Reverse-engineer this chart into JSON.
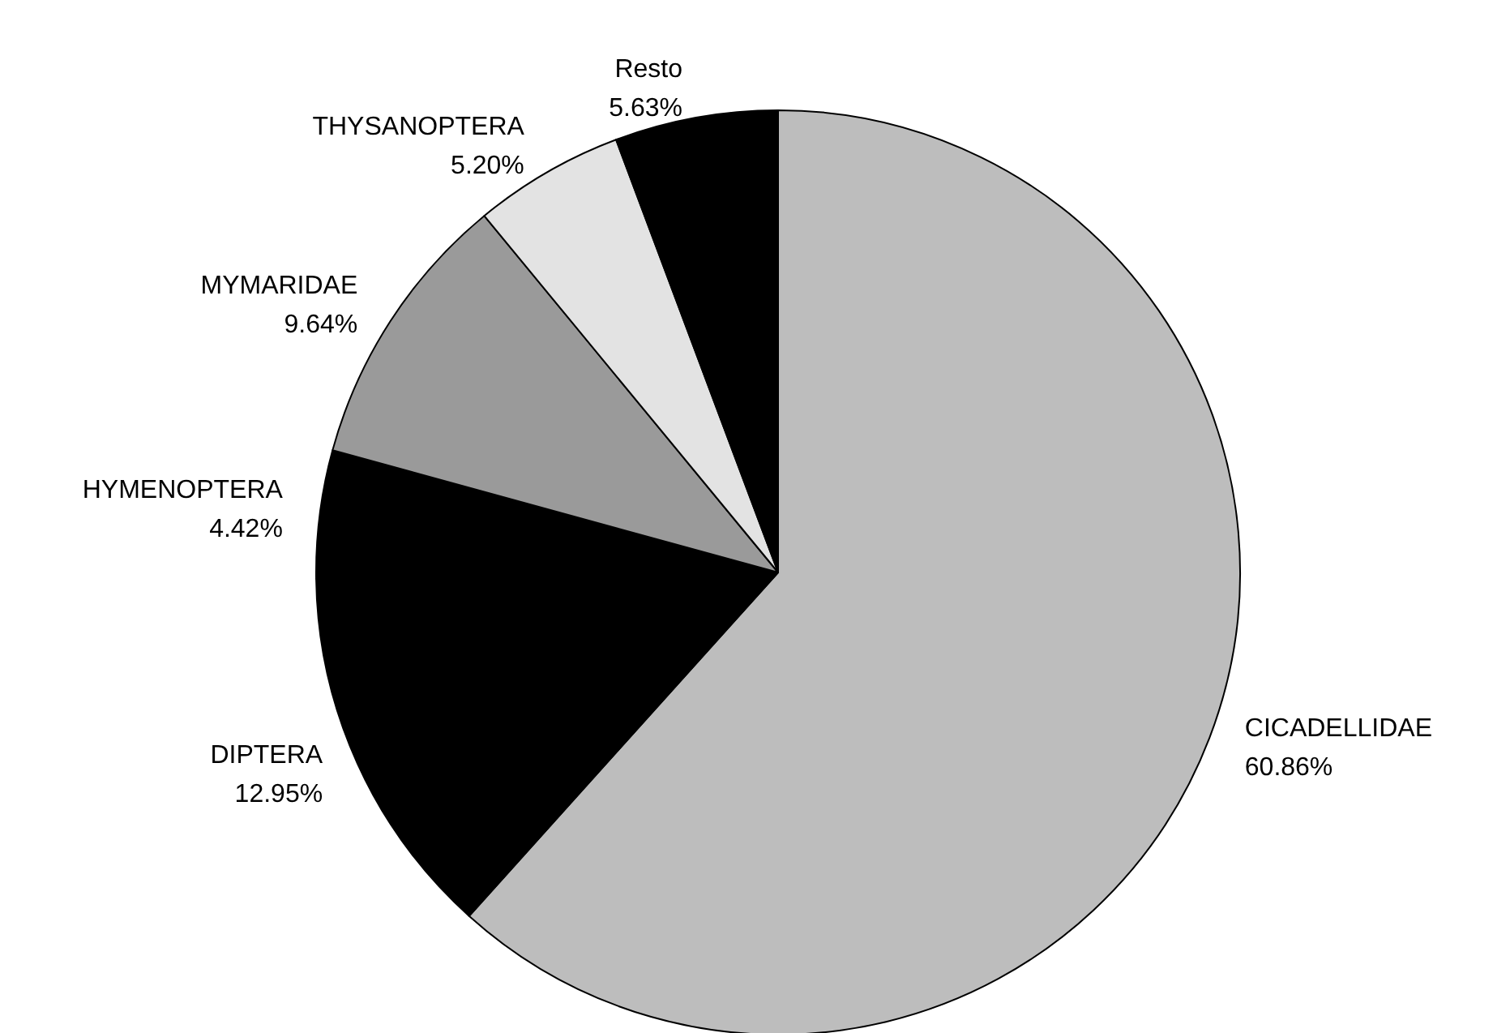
{
  "chart_data": {
    "type": "pie",
    "categories": [
      "CICADELLIDAE",
      "DIPTERA",
      "HYMENOPTERA",
      "MYMARIDAE",
      "THYSANOPTERA",
      "Resto"
    ],
    "values": [
      60.86,
      12.95,
      4.42,
      9.64,
      5.2,
      5.63
    ],
    "value_labels": [
      "60.86%",
      "12.95%",
      "4.42%",
      "9.64%",
      "5.20%",
      "5.63%"
    ],
    "colors": [
      "#bdbdbd",
      "#000000",
      "#000000",
      "#9a9a9a",
      "#e3e3e3",
      "#000000"
    ],
    "legend": false
  }
}
